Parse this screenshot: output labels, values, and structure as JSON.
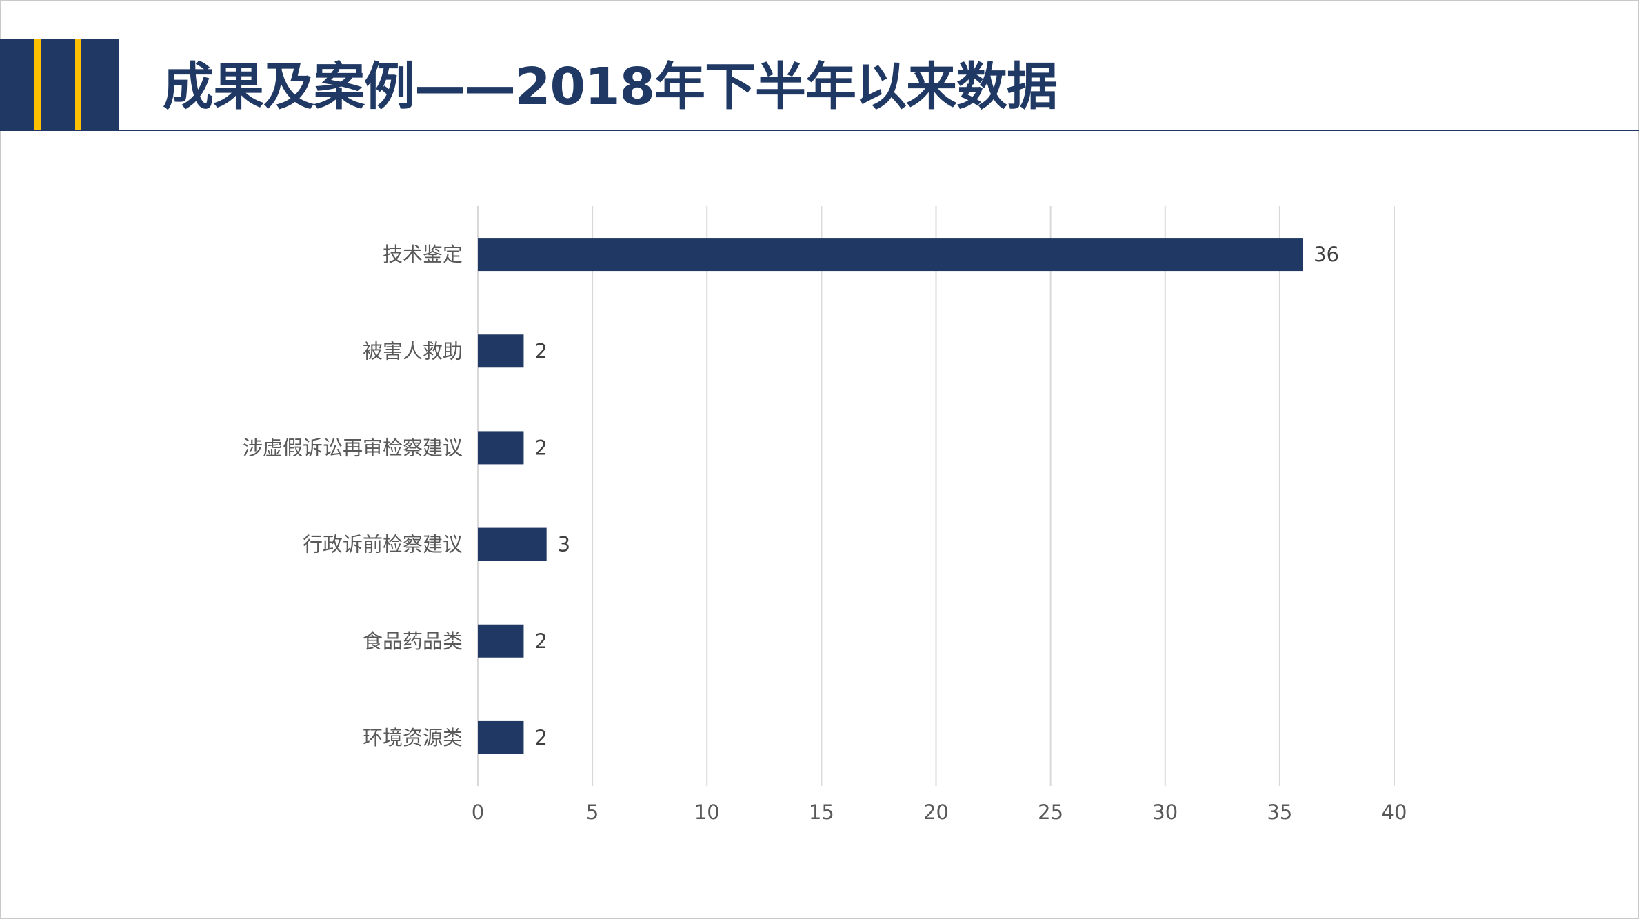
{
  "title": "成果及案例——2018年下半年以来数据",
  "colors": {
    "brand": "#1f3864",
    "accent": "#ffc000",
    "grid": "#d9d9d9",
    "text": "#595959"
  },
  "chart_data": {
    "type": "bar",
    "orientation": "horizontal",
    "categories": [
      "技术鉴定",
      "被害人救助",
      "涉虚假诉讼再审检察建议",
      "行政诉前检察建议",
      "食品药品类",
      "环境资源类"
    ],
    "values": [
      36,
      2,
      2,
      3,
      2,
      2
    ],
    "xlim": [
      0,
      40
    ],
    "xticks": [
      0,
      5,
      10,
      15,
      20,
      25,
      30,
      35,
      40
    ],
    "title": "",
    "xlabel": "",
    "ylabel": "",
    "grid": "vertical",
    "legend": "none",
    "data_labels": true
  }
}
